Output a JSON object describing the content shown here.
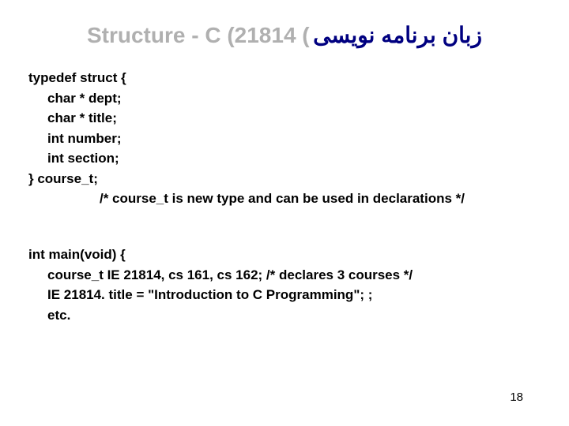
{
  "title": {
    "left": "Structure - C (21814 (",
    "right": " زبان برنامه نوی​سی"
  },
  "block1": {
    "l1": "typedef struct {",
    "l2": "char * dept;",
    "l3": "char * title;",
    "l4": "int number;",
    "l5": "int section;",
    "l6": "}  course_t;",
    "l7": "/* course_t is new type and can be used in declarations */"
  },
  "block2": {
    "l1": "int main(void) {",
    "l2": "course_t IE 21814, cs 161, cs 162; /* declares 3 courses */",
    "l3": "IE 21814. title = \"Introduction to C Programming\"; ;",
    "l4": "etc."
  },
  "pageNumber": "18",
  "colors": {
    "title_left": "#b0b0b0",
    "title_right": "#000080",
    "text": "#000000",
    "background": "#ffffff"
  },
  "fonts": {
    "title_size": 28,
    "code_size": 17,
    "pagenum_size": 15
  }
}
